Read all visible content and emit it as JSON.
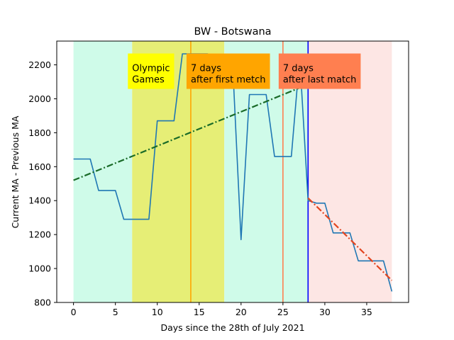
{
  "chart_data": {
    "type": "line",
    "title": "BW - Botswana",
    "xlabel": "Days since the 28th of July 2021",
    "ylabel": "Current MA - Previous MA",
    "xlim": [
      -2.0,
      40.0
    ],
    "ylim": [
      800,
      2340
    ],
    "xticks": [
      0,
      5,
      10,
      15,
      20,
      25,
      30,
      35
    ],
    "yticks": [
      800,
      1000,
      1200,
      1400,
      1600,
      1800,
      2000,
      2200
    ],
    "grid": false,
    "legend": "none",
    "regions": [
      {
        "from": 0,
        "to": 7,
        "color": "#cffbe9"
      },
      {
        "from": 7,
        "to": 18,
        "color": "#e6ee76"
      },
      {
        "from": 18,
        "to": 28,
        "color": "#cffbe9"
      },
      {
        "from": 28,
        "to": 38,
        "color": "#fde6e4"
      }
    ],
    "vlines": [
      {
        "x": 14,
        "color": "#ffa500"
      },
      {
        "x": 25,
        "color": "#ff7f50"
      },
      {
        "x": 28,
        "color": "#0000ff"
      }
    ],
    "annotations": [
      {
        "lines": [
          "Olympic",
          "Games"
        ],
        "x": 7.0,
        "y": 2150,
        "bg": "#ffff00"
      },
      {
        "lines": [
          "7 days",
          "after first metch"
        ],
        "x": 14.0,
        "y": 2150,
        "bg": "#ffa500"
      },
      {
        "lines": [
          "7 days",
          "after last match"
        ],
        "x": 25.0,
        "y": 2150,
        "bg": "#ff7f50"
      }
    ],
    "series": [
      {
        "color": "#1f77b4",
        "style": "solid",
        "x": [
          0,
          1,
          2,
          3,
          4,
          5,
          6,
          7,
          8,
          9,
          10,
          11,
          12,
          13,
          14,
          15,
          16,
          17,
          18,
          19,
          20,
          21,
          22,
          23,
          24,
          25,
          26,
          27,
          28,
          29,
          30,
          31,
          32,
          33,
          34,
          35,
          36,
          37,
          38
        ],
        "y": [
          1645,
          1645,
          1645,
          1460,
          1460,
          1460,
          1290,
          1290,
          1290,
          1290,
          1870,
          1870,
          1870,
          2265,
          2265,
          2265,
          2265,
          2225,
          2225,
          2200,
          1170,
          2025,
          2025,
          2025,
          1660,
          1660,
          1660,
          2245,
          1400,
          1385,
          1385,
          1210,
          1210,
          1210,
          1045,
          1045,
          1045,
          1045,
          865
        ]
      },
      {
        "color": "#1a6b28",
        "style": "dashdot",
        "x": [
          0,
          28
        ],
        "y": [
          1520,
          2085
        ]
      },
      {
        "color": "#e2441f",
        "style": "dashdot",
        "x": [
          28,
          38
        ],
        "y": [
          1415,
          930
        ]
      }
    ]
  }
}
